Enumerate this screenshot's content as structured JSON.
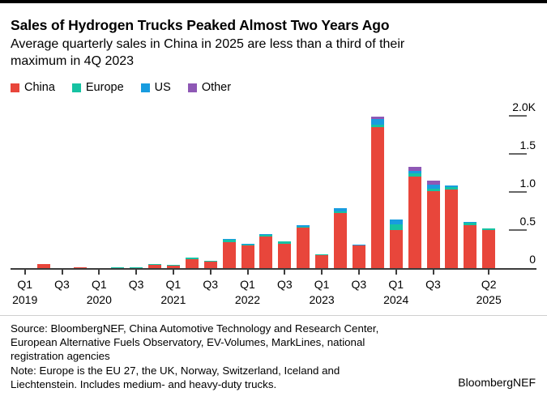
{
  "header": {
    "title": "Sales of Hydrogen Trucks Peaked Almost Two Years Ago",
    "subtitle": "Average quarterly sales in China in 2025 are less than a third of their maximum in 4Q 2023"
  },
  "chart_data": {
    "type": "bar",
    "stacked": true,
    "grid": false,
    "legend_position": "top",
    "ylim": [
      0,
      2000
    ],
    "categories": [
      "Q1 2019",
      "Q2 2019",
      "Q3 2019",
      "Q4 2019",
      "Q1 2020",
      "Q2 2020",
      "Q3 2020",
      "Q4 2020",
      "Q1 2021",
      "Q2 2021",
      "Q3 2021",
      "Q4 2021",
      "Q1 2022",
      "Q2 2022",
      "Q3 2022",
      "Q4 2022",
      "Q1 2023",
      "Q2 2023",
      "Q3 2023",
      "Q4 2023",
      "Q1 2024",
      "Q2 2024",
      "Q3 2024",
      "Q4 2024",
      "Q1 2025",
      "Q2 2025"
    ],
    "series": [
      {
        "name": "China",
        "color": "#e8463b",
        "values": [
          5,
          50,
          4,
          12,
          3,
          2,
          5,
          40,
          36,
          115,
          90,
          345,
          300,
          415,
          320,
          535,
          172,
          730,
          298,
          1855,
          500,
          1210,
          1015,
          1030,
          565,
          505
        ]
      },
      {
        "name": "Europe",
        "color": "#16c2a2",
        "values": [
          0,
          0,
          0,
          0,
          0,
          10,
          4,
          17,
          10,
          20,
          10,
          25,
          10,
          20,
          35,
          10,
          7,
          12,
          10,
          35,
          80,
          35,
          35,
          40,
          30,
          15
        ]
      },
      {
        "name": "US",
        "color": "#189cdf",
        "values": [
          0,
          0,
          0,
          0,
          0,
          0,
          0,
          0,
          0,
          0,
          0,
          10,
          12,
          15,
          0,
          25,
          0,
          44,
          6,
          70,
          55,
          35,
          45,
          20,
          10,
          0
        ]
      },
      {
        "name": "Other",
        "color": "#8e58b5",
        "values": [
          0,
          0,
          0,
          0,
          0,
          0,
          0,
          0,
          0,
          0,
          0,
          0,
          0,
          0,
          0,
          0,
          0,
          0,
          0,
          30,
          0,
          55,
          55,
          0,
          0,
          0
        ]
      }
    ],
    "yticks": [
      {
        "label": "2.0K",
        "value": 2000
      },
      {
        "label": "1.5",
        "value": 1500
      },
      {
        "label": "1.0",
        "value": 1000
      },
      {
        "label": "0.5",
        "value": 500
      },
      {
        "label": "0",
        "value": 0
      }
    ],
    "xticks": [
      {
        "index": 0,
        "quarter": "Q1",
        "year": "2019"
      },
      {
        "index": 2,
        "quarter": "Q3"
      },
      {
        "index": 4,
        "quarter": "Q1",
        "year": "2020"
      },
      {
        "index": 6,
        "quarter": "Q3"
      },
      {
        "index": 8,
        "quarter": "Q1",
        "year": "2021"
      },
      {
        "index": 10,
        "quarter": "Q3"
      },
      {
        "index": 12,
        "quarter": "Q1",
        "year": "2022"
      },
      {
        "index": 14,
        "quarter": "Q3"
      },
      {
        "index": 16,
        "quarter": "Q1",
        "year": "2023"
      },
      {
        "index": 18,
        "quarter": "Q3"
      },
      {
        "index": 20,
        "quarter": "Q1",
        "year": "2024"
      },
      {
        "index": 22,
        "quarter": "Q3"
      },
      {
        "index": 25,
        "quarter": "Q2",
        "year": "2025"
      }
    ]
  },
  "footer": {
    "source": "Source: BloombergNEF, China Automotive Technology and Research Center, European Alternative Fuels Observatory, EV-Volumes, MarkLines, national registration agencies",
    "note": "Note: Europe is the EU 27, the UK, Norway, Switzerland, Iceland and Liechtenstein. Includes medium- and heavy-duty trucks.",
    "brand": "BloombergNEF"
  }
}
